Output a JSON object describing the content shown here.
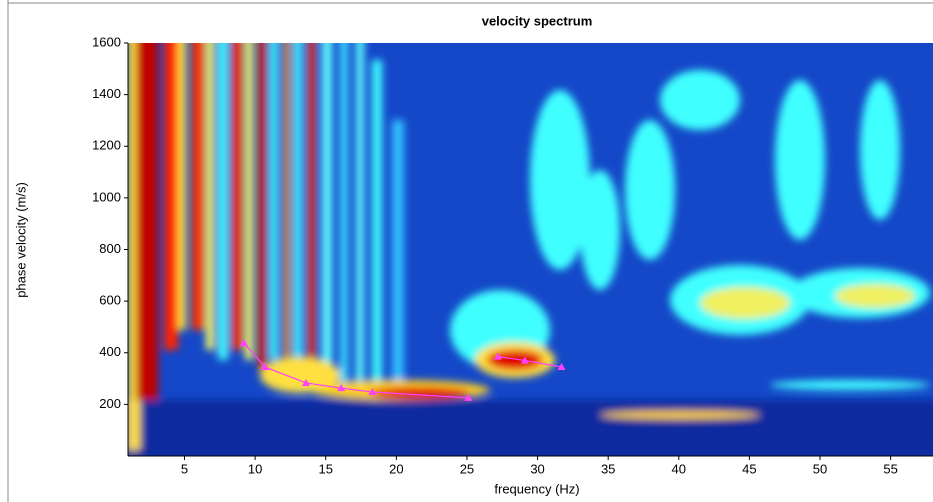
{
  "chart_data": {
    "type": "line",
    "title": "velocity spectrum",
    "x_label": "frequency (Hz)",
    "y_label": "phase velocity (m/s)",
    "xlim": [
      1,
      58
    ],
    "ylim": [
      0,
      1600
    ],
    "xticks": [
      5,
      10,
      15,
      20,
      25,
      30,
      35,
      40,
      45,
      50,
      55
    ],
    "yticks": [
      200,
      400,
      600,
      800,
      1000,
      1200,
      1400,
      1600
    ],
    "series": [
      {
        "color": "#ff40ff",
        "x": [
          9.2,
          10.7,
          13.6,
          16.1,
          18.3,
          25.1
        ],
        "values": [
          438,
          345,
          283,
          263,
          248,
          225
        ]
      },
      {
        "color": "#ff40ff",
        "x": [
          27.2,
          29.1,
          31.7
        ],
        "values": [
          385,
          370,
          345
        ]
      }
    ]
  }
}
